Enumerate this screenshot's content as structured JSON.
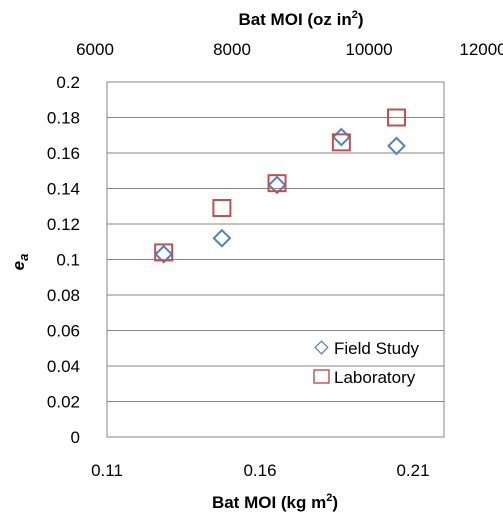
{
  "chart_data": {
    "type": "scatter",
    "top_axis": {
      "label": "Bat MOI (oz in",
      "label_sup": "2",
      "label_end": ")",
      "ticks": [
        "6000",
        "8000",
        "10000",
        "12000"
      ],
      "range": [
        6000,
        12000
      ]
    },
    "xlabel": "Bat MOI (kg m",
    "xlabel_sup": "2",
    "xlabel_end": ")",
    "xlim": [
      0.11,
      0.22
    ],
    "xticks": [
      "0.11",
      "0.16",
      "0.21"
    ],
    "ylabel": "e",
    "ylabel_sub": "a",
    "ylim": [
      0,
      0.2
    ],
    "yticks": [
      "0",
      "0.02",
      "0.04",
      "0.06",
      "0.08",
      "0.1",
      "0.12",
      "0.14",
      "0.16",
      "0.18",
      "0.2"
    ],
    "grid": "horizontal",
    "legend_position": "bottom-right",
    "series": [
      {
        "name": "Field Study",
        "marker": "diamond",
        "color": "#4f81bd",
        "points": [
          {
            "x": 0.1285,
            "y": 0.103
          },
          {
            "x": 0.1475,
            "y": 0.112
          },
          {
            "x": 0.1655,
            "y": 0.142
          },
          {
            "x": 0.1865,
            "y": 0.169
          },
          {
            "x": 0.2045,
            "y": 0.164
          }
        ]
      },
      {
        "name": "Laboratory",
        "marker": "square",
        "color": "#c0504d",
        "points": [
          {
            "x": 0.1285,
            "y": 0.104
          },
          {
            "x": 0.1475,
            "y": 0.129
          },
          {
            "x": 0.1655,
            "y": 0.143
          },
          {
            "x": 0.1865,
            "y": 0.166
          },
          {
            "x": 0.2045,
            "y": 0.18
          }
        ]
      }
    ]
  }
}
